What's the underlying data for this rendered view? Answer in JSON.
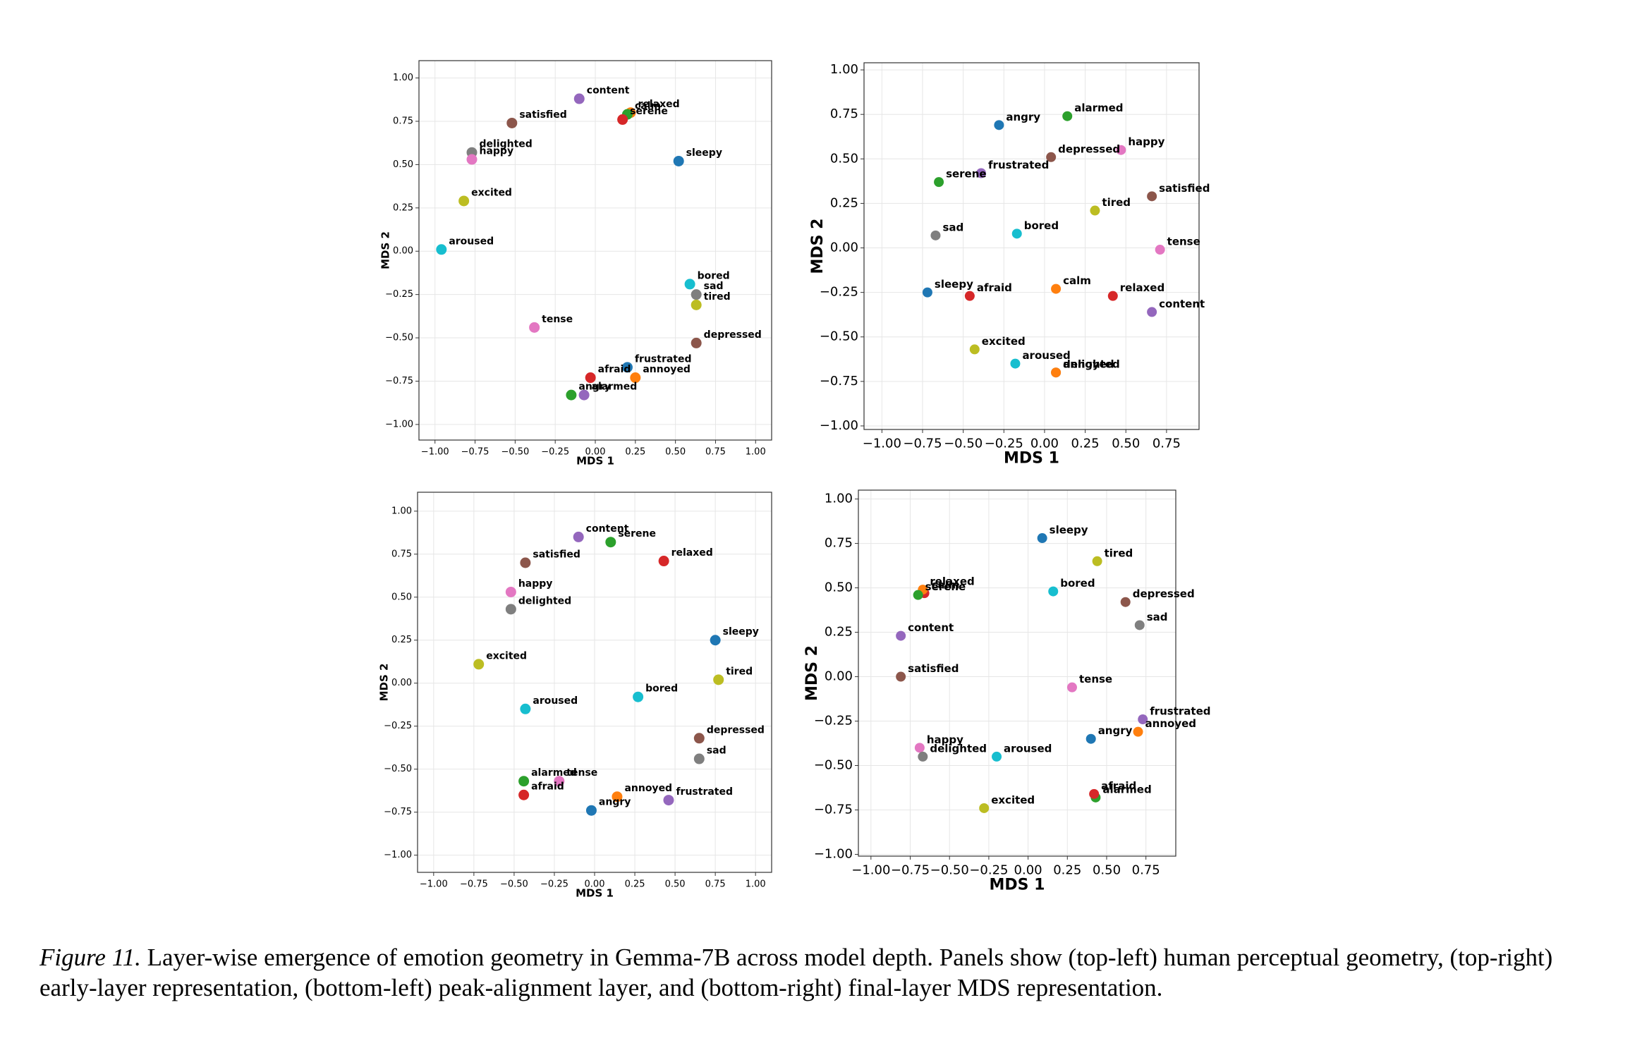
{
  "chart_data": [
    {
      "type": "scatter",
      "x_label": "MDS 1",
      "y_label": "MDS 2",
      "grid": true,
      "xlim": [
        -1.1,
        1.1
      ],
      "ylim": [
        -1.09,
        1.1
      ],
      "xticks": [
        {
          "value": -1,
          "label": "−1.00"
        },
        {
          "value": -0.75,
          "label": "−0.75"
        },
        {
          "value": -0.5,
          "label": "−0.50"
        },
        {
          "value": -0.25,
          "label": "−0.25"
        },
        {
          "value": 0,
          "label": "0.00"
        },
        0.25,
        {
          "value": 0.5,
          "label": "0.50"
        },
        0.75,
        {
          "value": 1,
          "label": "1.00"
        }
      ],
      "yticks": [
        {
          "value": -1,
          "label": "−1.00"
        },
        {
          "value": -0.75,
          "label": "−0.75"
        },
        {
          "value": -0.5,
          "label": "−0.50"
        },
        {
          "value": -0.25,
          "label": "−0.25"
        },
        {
          "value": 0,
          "label": "0.00"
        },
        0.25,
        {
          "value": 0.5,
          "label": "0.50"
        },
        0.75,
        {
          "value": 1,
          "label": "1.00"
        }
      ],
      "labels": [
        "content",
        "relaxed",
        "calm",
        "serene",
        "satisfied",
        "delighted",
        "happy",
        "sleepy",
        "excited",
        "aroused",
        "bored",
        "sad",
        "tired",
        "tense",
        "depressed",
        "frustrated",
        "afraid",
        "annoyed",
        "angry",
        "alarmed"
      ],
      "x": [
        -0.1,
        0.22,
        0.2,
        0.17,
        -0.52,
        -0.77,
        -0.77,
        0.52,
        -0.82,
        -0.96,
        0.59,
        0.63,
        0.63,
        -0.38,
        0.63,
        0.2,
        -0.03,
        0.25,
        -0.15,
        -0.07
      ],
      "values": [
        0.88,
        0.8,
        0.79,
        0.76,
        0.74,
        0.57,
        0.53,
        0.52,
        0.29,
        0.01,
        -0.19,
        -0.25,
        -0.31,
        -0.44,
        -0.53,
        -0.67,
        -0.73,
        -0.73,
        -0.83,
        -0.83
      ],
      "colors": [
        "#9467bd",
        "#ff7f0e",
        "#2ca02c",
        "#d62728",
        "#8c564b",
        "#7f7f7f",
        "#e377c2",
        "#1f77b4",
        "#bcbd22",
        "#17becf",
        "#17becf",
        "#7f7f7f",
        "#bcbd22",
        "#e377c2",
        "#8c564b",
        "#1f77b4",
        "#d62728",
        "#ff7f0e",
        "#2ca02c",
        "#9467bd"
      ]
    },
    {
      "type": "scatter",
      "x_label": "MDS 1",
      "y_label": "MDS 2",
      "grid": true,
      "xlim": [
        -1.11,
        0.95
      ],
      "ylim": [
        -1.02,
        1.04
      ],
      "xticks": [
        {
          "value": -1,
          "label": "−1.00"
        },
        {
          "value": -0.75,
          "label": "−0.75"
        },
        {
          "value": -0.5,
          "label": "−0.50"
        },
        {
          "value": -0.25,
          "label": "−0.25"
        },
        {
          "value": 0,
          "label": "0.00"
        },
        0.25,
        {
          "value": 0.5,
          "label": "0.50"
        },
        0.75
      ],
      "yticks": [
        {
          "value": -1,
          "label": "−1.00"
        },
        {
          "value": -0.75,
          "label": "−0.75"
        },
        {
          "value": -0.5,
          "label": "−0.50"
        },
        {
          "value": -0.25,
          "label": "−0.25"
        },
        {
          "value": 0,
          "label": "0.00"
        },
        0.25,
        {
          "value": 0.5,
          "label": "0.50"
        },
        0.75,
        {
          "value": 1,
          "label": "1.00"
        }
      ],
      "labels": [
        "angry",
        "alarmed",
        "depressed",
        "happy",
        "frustrated",
        "serene",
        "satisfied",
        "tired",
        "sad",
        "bored",
        "tense",
        "sleepy",
        "afraid",
        "calm",
        "relaxed",
        "content",
        "excited",
        "aroused",
        "delighted",
        "annoyed"
      ],
      "x": [
        -0.28,
        0.14,
        0.04,
        0.47,
        -0.39,
        -0.65,
        0.66,
        0.31,
        -0.67,
        -0.17,
        0.71,
        -0.72,
        -0.46,
        0.07,
        0.42,
        0.66,
        -0.43,
        -0.18,
        0.07,
        0.07
      ],
      "values": [
        0.69,
        0.74,
        0.51,
        0.55,
        0.42,
        0.37,
        0.29,
        0.21,
        0.07,
        0.08,
        -0.01,
        -0.25,
        -0.27,
        -0.23,
        -0.27,
        -0.36,
        -0.57,
        -0.65,
        -0.7,
        -0.7
      ],
      "colors": [
        "#1f77b4",
        "#2ca02c",
        "#8c564b",
        "#e377c2",
        "#9467bd",
        "#2ca02c",
        "#8c564b",
        "#bcbd22",
        "#7f7f7f",
        "#17becf",
        "#e377c2",
        "#1f77b4",
        "#d62728",
        "#ff7f0e",
        "#d62728",
        "#9467bd",
        "#bcbd22",
        "#17becf",
        "#7f7f7f",
        "#ff7f0e"
      ]
    },
    {
      "type": "scatter",
      "x_label": "MDS 1",
      "y_label": "MDS 2",
      "grid": true,
      "xlim": [
        -1.1,
        1.1
      ],
      "ylim": [
        -1.1,
        1.11
      ],
      "xticks": [
        {
          "value": -1,
          "label": "−1.00"
        },
        {
          "value": -0.75,
          "label": "−0.75"
        },
        {
          "value": -0.5,
          "label": "−0.50"
        },
        {
          "value": -0.25,
          "label": "−0.25"
        },
        {
          "value": 0,
          "label": "0.00"
        },
        0.25,
        {
          "value": 0.5,
          "label": "0.50"
        },
        0.75,
        {
          "value": 1,
          "label": "1.00"
        }
      ],
      "yticks": [
        {
          "value": -1,
          "label": "−1.00"
        },
        {
          "value": -0.75,
          "label": "−0.75"
        },
        {
          "value": -0.5,
          "label": "−0.50"
        },
        {
          "value": -0.25,
          "label": "−0.25"
        },
        {
          "value": 0,
          "label": "0.00"
        },
        0.25,
        {
          "value": 0.5,
          "label": "0.50"
        },
        0.75,
        {
          "value": 1,
          "label": "1.00"
        }
      ],
      "labels": [
        "content",
        "serene",
        "relaxed",
        "satisfied",
        "happy",
        "delighted",
        "sleepy",
        "excited",
        "tired",
        "bored",
        "aroused",
        "depressed",
        "sad",
        "alarmed",
        "tense",
        "afraid",
        "annoyed",
        "frustrated",
        "angry"
      ],
      "x": [
        -0.1,
        0.1,
        0.43,
        -0.43,
        -0.52,
        -0.52,
        0.75,
        -0.72,
        0.77,
        0.27,
        -0.43,
        0.65,
        0.65,
        -0.44,
        -0.22,
        -0.44,
        0.14,
        0.46,
        -0.02
      ],
      "values": [
        0.85,
        0.82,
        0.71,
        0.7,
        0.53,
        0.43,
        0.25,
        0.11,
        0.02,
        -0.08,
        -0.15,
        -0.32,
        -0.44,
        -0.57,
        -0.57,
        -0.65,
        -0.66,
        -0.68,
        -0.74
      ],
      "colors": [
        "#9467bd",
        "#2ca02c",
        "#d62728",
        "#8c564b",
        "#e377c2",
        "#7f7f7f",
        "#1f77b4",
        "#bcbd22",
        "#bcbd22",
        "#17becf",
        "#17becf",
        "#8c564b",
        "#7f7f7f",
        "#2ca02c",
        "#e377c2",
        "#d62728",
        "#ff7f0e",
        "#9467bd",
        "#1f77b4"
      ]
    },
    {
      "type": "scatter",
      "x_label": "MDS 1",
      "y_label": "MDS 2",
      "grid": true,
      "xlim": [
        -1.08,
        0.94
      ],
      "ylim": [
        -1.01,
        1.05
      ],
      "xticks": [
        {
          "value": -1,
          "label": "−1.00"
        },
        {
          "value": -0.75,
          "label": "−0.75"
        },
        {
          "value": -0.5,
          "label": "−0.50"
        },
        {
          "value": -0.25,
          "label": "−0.25"
        },
        {
          "value": 0,
          "label": "0.00"
        },
        0.25,
        {
          "value": 0.5,
          "label": "0.50"
        },
        0.75
      ],
      "yticks": [
        {
          "value": -1,
          "label": "−1.00"
        },
        {
          "value": -0.75,
          "label": "−0.75"
        },
        {
          "value": -0.5,
          "label": "−0.50"
        },
        {
          "value": -0.25,
          "label": "−0.25"
        },
        {
          "value": 0,
          "label": "0.00"
        },
        0.25,
        {
          "value": 0.5,
          "label": "0.50"
        },
        0.75,
        {
          "value": 1,
          "label": "1.00"
        }
      ],
      "labels": [
        "sleepy",
        "tired",
        "calm",
        "relaxed",
        "serene",
        "bored",
        "depressed",
        "sad",
        "content",
        "satisfied",
        "tense",
        "frustrated",
        "annoyed",
        "angry",
        "happy",
        "delighted",
        "aroused",
        "alarmed",
        "afraid",
        "excited"
      ],
      "x": [
        0.09,
        0.44,
        -0.66,
        -0.67,
        -0.7,
        0.16,
        0.62,
        0.71,
        -0.81,
        -0.81,
        0.28,
        0.73,
        0.7,
        0.4,
        -0.69,
        -0.67,
        -0.2,
        0.43,
        0.42,
        -0.28
      ],
      "values": [
        0.78,
        0.65,
        0.47,
        0.49,
        0.46,
        0.48,
        0.42,
        0.29,
        0.23,
        0.0,
        -0.06,
        -0.24,
        -0.31,
        -0.35,
        -0.4,
        -0.45,
        -0.45,
        -0.68,
        -0.66,
        -0.74
      ],
      "colors": [
        "#1f77b4",
        "#bcbd22",
        "#d62728",
        "#ff7f0e",
        "#2ca02c",
        "#17becf",
        "#8c564b",
        "#7f7f7f",
        "#9467bd",
        "#8c564b",
        "#e377c2",
        "#9467bd",
        "#ff7f0e",
        "#1f77b4",
        "#e377c2",
        "#7f7f7f",
        "#17becf",
        "#2ca02c",
        "#d62728",
        "#bcbd22"
      ]
    }
  ],
  "caption": {
    "label": "Figure 11.",
    "text": "Layer-wise emergence of emotion geometry in Gemma-7B across model depth. Panels show (top-left) human perceptual geometry, (top-right) early-layer representation, (bottom-left) peak-alignment layer, and (bottom-right) final-layer MDS representation."
  }
}
